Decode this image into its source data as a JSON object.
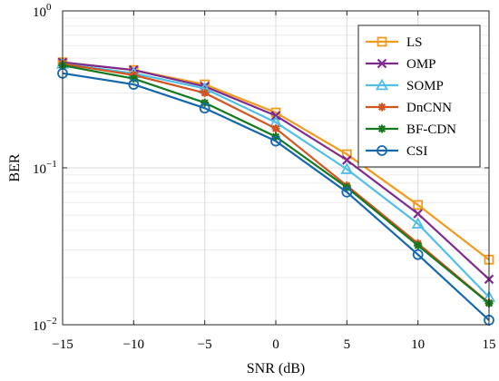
{
  "chart_data": {
    "type": "line",
    "title": "",
    "xlabel": "SNR (dB)",
    "ylabel": "BER",
    "x": [
      -15,
      -10,
      -5,
      0,
      5,
      10,
      15
    ],
    "xlim": [
      -15,
      15
    ],
    "ylim": [
      0.01,
      1
    ],
    "yscale": "log",
    "grid": true,
    "legend": "top-right",
    "x_ticks": [
      -15,
      -10,
      -5,
      0,
      5,
      10,
      15
    ],
    "x_tick_labels": [
      "−15",
      "−10",
      "−5",
      "0",
      "5",
      "10",
      "15"
    ],
    "y_ticks": [
      0.01,
      0.1,
      1
    ],
    "y_tick_labels": [
      {
        "base": "10",
        "exp": "−2"
      },
      {
        "base": "10",
        "exp": "−1"
      },
      {
        "base": "10",
        "exp": "0"
      }
    ],
    "series": [
      {
        "name": "LS",
        "color": "#f39a1c",
        "marker": "square",
        "values": [
          0.47,
          0.42,
          0.34,
          0.225,
          0.122,
          0.058,
          0.026
        ]
      },
      {
        "name": "OMP",
        "color": "#7d2b8e",
        "marker": "x",
        "values": [
          0.47,
          0.42,
          0.33,
          0.215,
          0.112,
          0.051,
          0.0195
        ]
      },
      {
        "name": "SOMP",
        "color": "#4fbfe8",
        "marker": "triangle",
        "values": [
          0.46,
          0.4,
          0.32,
          0.195,
          0.098,
          0.044,
          0.015
        ]
      },
      {
        "name": "DnCNN",
        "color": "#d2541e",
        "marker": "star",
        "values": [
          0.46,
          0.39,
          0.3,
          0.178,
          0.077,
          0.033,
          0.0138
        ]
      },
      {
        "name": "BF-CDN",
        "color": "#157a1f",
        "marker": "star",
        "values": [
          0.45,
          0.37,
          0.26,
          0.158,
          0.075,
          0.032,
          0.0137
        ]
      },
      {
        "name": "CSI",
        "color": "#1568ae",
        "marker": "circle",
        "values": [
          0.4,
          0.34,
          0.24,
          0.148,
          0.07,
          0.028,
          0.0107
        ]
      }
    ]
  }
}
